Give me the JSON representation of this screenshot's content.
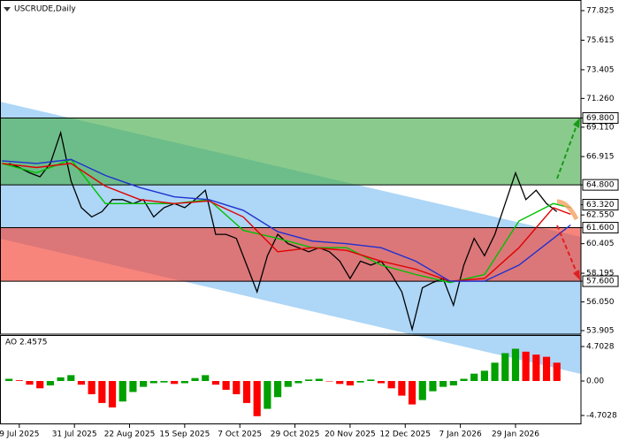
{
  "chart_data": [
    {
      "type": "line",
      "title": "USCRUDE,Daily",
      "x": [
        -3,
        0,
        3,
        6,
        9,
        12,
        15,
        18,
        21,
        24,
        27,
        30,
        33,
        36,
        39,
        42,
        45,
        48,
        51,
        54,
        57,
        60,
        63,
        66,
        69,
        72,
        75,
        78,
        81,
        84,
        87,
        90,
        93,
        96,
        99,
        102,
        105,
        108,
        111,
        114,
        117,
        120,
        123,
        126,
        129,
        132,
        135,
        138,
        141,
        144,
        147,
        150,
        153,
        156
      ],
      "series": [
        {
          "color": "#000000",
          "values": [
            66.4,
            66.1,
            65.7,
            65.4,
            66.4,
            68.7,
            65.1,
            63.1,
            62.4,
            62.8,
            63.7,
            63.7,
            63.4,
            63.7,
            62.4,
            63.1,
            63.4,
            63.1,
            63.7,
            64.4,
            61.1,
            61.1,
            60.8,
            58.8,
            56.8,
            59.5,
            61.1,
            60.4,
            60.1,
            59.8,
            60.1,
            59.8,
            59.1,
            57.8,
            59.1,
            58.8,
            59.1,
            58.1,
            56.8,
            54.0,
            57.1,
            57.5,
            57.8,
            55.8,
            58.8,
            60.8,
            59.5,
            61.1,
            63.4,
            65.7,
            63.7,
            64.4,
            63.4,
            62.8
          ]
        },
        {
          "color": "#00c000",
          "x": [
            -5,
            5,
            15,
            25,
            35,
            45,
            55,
            65,
            75,
            85,
            95,
            105,
            115,
            125,
            135,
            145,
            155,
            160
          ],
          "values": [
            66.4,
            65.7,
            66.7,
            63.4,
            63.4,
            63.4,
            63.7,
            61.4,
            60.8,
            60.1,
            60.1,
            58.8,
            58.1,
            57.5,
            58.1,
            62.1,
            63.4,
            63.1
          ]
        },
        {
          "color": "#e00000",
          "x": [
            -5,
            5,
            15,
            25,
            35,
            45,
            55,
            65,
            75,
            85,
            95,
            105,
            115,
            125,
            135,
            145,
            155,
            160
          ],
          "values": [
            66.4,
            66.1,
            66.4,
            64.7,
            63.7,
            63.4,
            63.6,
            62.4,
            59.8,
            60.1,
            59.9,
            59.1,
            58.5,
            57.6,
            57.8,
            60.1,
            63.1,
            62.6
          ]
        },
        {
          "color": "#2030d0",
          "x": [
            -5,
            5,
            15,
            25,
            35,
            45,
            55,
            65,
            75,
            85,
            95,
            105,
            115,
            125,
            135,
            145,
            155,
            160
          ],
          "values": [
            66.6,
            66.4,
            66.7,
            65.5,
            64.6,
            63.9,
            63.7,
            62.9,
            61.3,
            60.6,
            60.4,
            60.1,
            59.1,
            57.6,
            57.6,
            58.8,
            60.8,
            61.8
          ]
        }
      ],
      "xlim": [
        -5.6,
        163
      ],
      "xticks": [
        {
          "value": 0,
          "label": "9 Jul 2025"
        },
        {
          "value": 16,
          "label": "31 Jul 2025"
        },
        {
          "value": 32,
          "label": "22 Aug 2025"
        },
        {
          "value": 48,
          "label": "15 Sep 2025"
        },
        {
          "value": 64,
          "label": "7 Oct 2025"
        },
        {
          "value": 80,
          "label": "29 Oct 2025"
        },
        {
          "value": 96,
          "label": "20 Nov 2025"
        },
        {
          "value": 112,
          "label": "12 Dec 2025"
        },
        {
          "value": 128,
          "label": "7 Jan 2026"
        },
        {
          "value": 144,
          "label": "29 Jan 2026"
        }
      ],
      "ylim": [
        53.64,
        78.62
      ],
      "yticks": [
        77.825,
        75.615,
        73.405,
        {
          "value": 71.26,
          "label": "71.260"
        },
        {
          "value": 69.8,
          "label": "69.800",
          "boxed": true
        },
        {
          "value": 69.11,
          "label": "69.110"
        },
        66.915,
        {
          "value": 64.8,
          "label": "64.800",
          "boxed": true
        },
        {
          "value": 63.32,
          "label": "63.320",
          "boxed": true
        },
        {
          "value": 62.55,
          "label": "62.550"
        },
        {
          "value": 61.6,
          "label": "61.600",
          "boxed": true
        },
        60.405,
        58.195,
        {
          "value": 57.6,
          "label": "57.600",
          "boxed": true
        },
        {
          "value": 56.05,
          "label": "56.050"
        },
        53.905
      ],
      "levels": [
        69.8,
        64.8,
        61.6,
        57.6
      ],
      "zones": [
        {
          "from": 64.8,
          "to": 69.8,
          "color": "#4caf50"
        },
        {
          "from": 57.6,
          "to": 61.6,
          "color": "#f44336"
        }
      ]
    },
    {
      "type": "bar",
      "title": "AO 2.4575",
      "x": [
        -3,
        0,
        3,
        6,
        9,
        12,
        15,
        18,
        21,
        24,
        27,
        30,
        33,
        36,
        39,
        42,
        45,
        48,
        51,
        54,
        57,
        60,
        63,
        66,
        69,
        72,
        75,
        78,
        81,
        84,
        87,
        90,
        93,
        96,
        99,
        102,
        105,
        108,
        111,
        114,
        117,
        120,
        123,
        126,
        129,
        132,
        135,
        138,
        141,
        144,
        147,
        150,
        153,
        156
      ],
      "values": [
        0.3,
        0.1,
        -0.5,
        -1.0,
        -0.6,
        0.5,
        0.8,
        -0.5,
        -1.8,
        -3.0,
        -3.6,
        -2.8,
        -1.5,
        -0.8,
        -0.3,
        -0.2,
        -0.4,
        -0.3,
        0.4,
        0.8,
        -0.5,
        -1.2,
        -1.8,
        -3.0,
        -4.8,
        -3.8,
        -2.2,
        -0.8,
        -0.3,
        0.2,
        0.3,
        0.0,
        -0.4,
        -0.6,
        -0.2,
        0.2,
        -0.3,
        -1.0,
        -2.0,
        -3.2,
        -2.6,
        -1.4,
        -0.8,
        -0.6,
        0.3,
        1.0,
        1.4,
        2.5,
        3.8,
        4.4,
        4.0,
        3.6,
        3.3,
        2.5
      ],
      "up_color": "#00a000",
      "down_color": "#ff0000",
      "xlim": [
        -5.6,
        163
      ],
      "ylim": [
        -5.91,
        6.15
      ],
      "yticks": [
        4.7028,
        {
          "value": 0,
          "label": "0.00"
        },
        -4.7028
      ]
    }
  ]
}
